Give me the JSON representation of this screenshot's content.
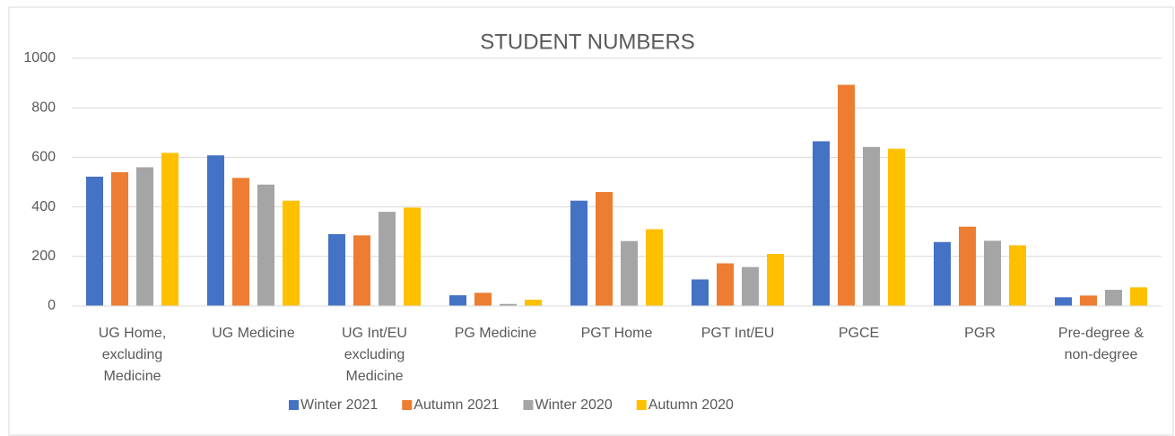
{
  "chart_data": {
    "type": "bar",
    "title": "STUDENT NUMBERS",
    "categories": [
      "UG Home, excluding Medicine",
      "UG Medicine",
      "UG Int/EU excluding Medicine",
      "PG Medicine",
      "PGT Home",
      "PGT Int/EU",
      "PGCE",
      "PGR",
      "Pre-degree & non-degree"
    ],
    "series": [
      {
        "name": "Winter 2021",
        "color": "#4472c4",
        "values": [
          522,
          608,
          290,
          43,
          425,
          107,
          665,
          258,
          35
        ]
      },
      {
        "name": "Autumn 2021",
        "color": "#ed7d31",
        "values": [
          540,
          517,
          285,
          53,
          460,
          172,
          893,
          320,
          42
        ]
      },
      {
        "name": "Winter 2020",
        "color": "#a5a5a5",
        "values": [
          560,
          490,
          380,
          8,
          262,
          157,
          642,
          263,
          65
        ]
      },
      {
        "name": "Autumn 2020",
        "color": "#ffc000",
        "values": [
          618,
          425,
          397,
          25,
          310,
          210,
          635,
          245,
          75
        ]
      }
    ],
    "ylim": [
      0,
      1000
    ],
    "yticks": [
      0,
      200,
      400,
      600,
      800,
      1000
    ],
    "grid": true,
    "legend": "bottom"
  }
}
